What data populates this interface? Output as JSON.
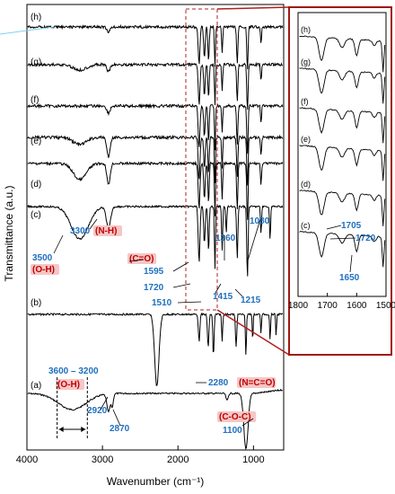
{
  "chart_data": {
    "type": "line",
    "xlabel": "Wavenumber (cm⁻¹)",
    "ylabel": "Transmittance (a.u.)",
    "xlim": [
      4000,
      600
    ],
    "x_ticks": [
      "4000",
      "3000",
      "2000",
      "1000"
    ],
    "inset_xlim": [
      1800,
      1500
    ],
    "inset_x_ticks": [
      "1800",
      "1700",
      "1600",
      "1500"
    ],
    "series_labels": [
      "(a)",
      "(b)",
      "(c)",
      "(d)",
      "(e)",
      "(f)",
      "(g)",
      "(h)"
    ],
    "annotations_blue": [
      {
        "text": "3300",
        "x": 3300
      },
      {
        "text": "3500",
        "x": 3500
      },
      {
        "text": "1595",
        "x": 1595
      },
      {
        "text": "1720",
        "x": 1720
      },
      {
        "text": "1510",
        "x": 1510
      },
      {
        "text": "1415",
        "x": 1415
      },
      {
        "text": "1360",
        "x": 1360
      },
      {
        "text": "1080",
        "x": 1080
      },
      {
        "text": "1215",
        "x": 1215
      },
      {
        "text": "2280",
        "x": 2280
      },
      {
        "text": "3600 – 3200",
        "x": 3400
      },
      {
        "text": "2920",
        "x": 2920
      },
      {
        "text": "2870",
        "x": 2870
      },
      {
        "text": "1100",
        "x": 1100
      }
    ],
    "annotations_red": [
      {
        "text": "(N-H)"
      },
      {
        "text": "(O-H)"
      },
      {
        "text": "(C=O)"
      },
      {
        "text": "(N=C=O)"
      },
      {
        "text": "(O-H)"
      },
      {
        "text": "(C-O-C)"
      }
    ],
    "inset_annotations": [
      {
        "text": "1705",
        "x": 1705
      },
      {
        "text": "1720",
        "x": 1720
      },
      {
        "text": "1650",
        "x": 1650
      }
    ],
    "colors": {
      "line": "#000000",
      "blue": "#1f6fbf",
      "red": "#c00000",
      "box": "#a01818",
      "highlight": "#f6c6c6"
    }
  }
}
